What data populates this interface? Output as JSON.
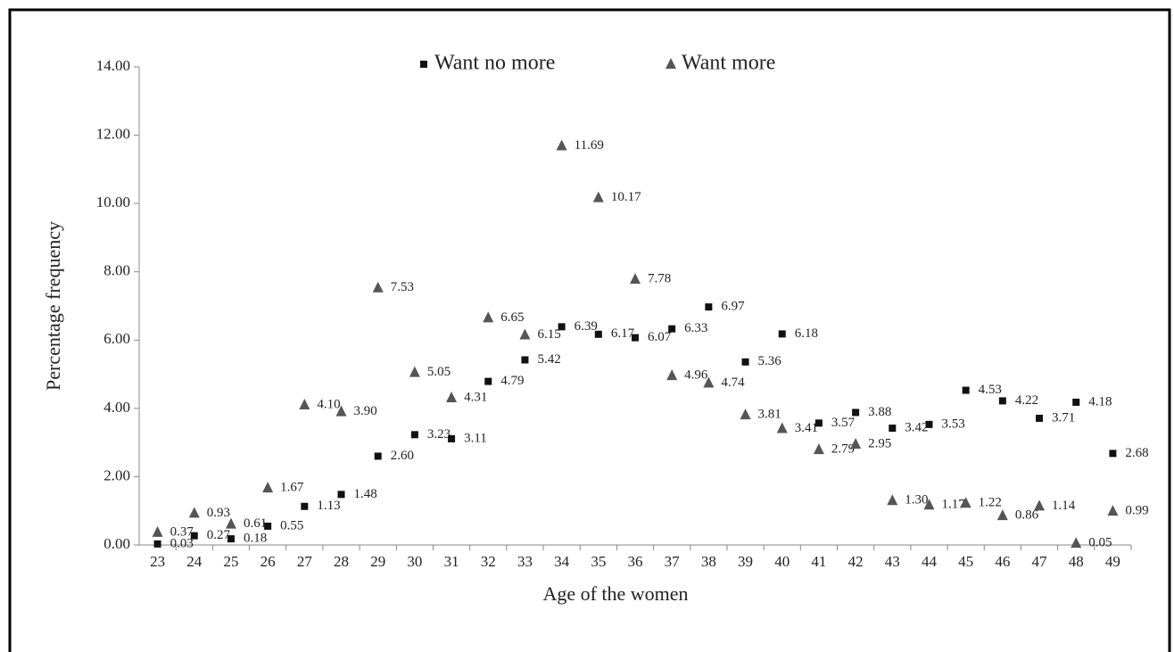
{
  "chart_data": {
    "type": "scatter",
    "x_label": "Age of the women",
    "y_label": "Percentage frequency",
    "categories": [
      "23",
      "24",
      "25",
      "26",
      "27",
      "28",
      "29",
      "30",
      "31",
      "32",
      "33",
      "34",
      "35",
      "36",
      "37",
      "38",
      "39",
      "40",
      "41",
      "42",
      "43",
      "44",
      "45",
      "46",
      "47",
      "48",
      "49"
    ],
    "series": [
      {
        "name": "Want no more",
        "color": "#111111",
        "marker": "square",
        "values": [
          0.03,
          0.27,
          0.18,
          0.55,
          1.13,
          1.48,
          2.6,
          3.23,
          3.11,
          4.79,
          5.42,
          6.39,
          6.17,
          6.07,
          6.33,
          6.97,
          5.36,
          6.18,
          3.57,
          3.88,
          3.42,
          3.53,
          4.53,
          4.22,
          3.71,
          4.18,
          2.68
        ],
        "value_labels": [
          "0.03",
          "0.27",
          "0.18",
          "0.55",
          "1.13",
          "1.48",
          "2.60",
          "3.23",
          "3.11",
          "4.79",
          "5.42",
          "6.39",
          "6.17",
          "6.07",
          "6.33",
          "6.97",
          "5.36",
          "6.18",
          "3.57",
          "3.88",
          "3.42",
          "3.53",
          "4.53",
          "4.22",
          "3.71",
          "4.18",
          "2.68"
        ]
      },
      {
        "name": "Want more",
        "color": "#555555",
        "marker": "triangle",
        "values": [
          0.37,
          0.93,
          0.61,
          1.67,
          4.1,
          3.9,
          7.53,
          5.05,
          4.31,
          6.65,
          6.15,
          11.69,
          10.17,
          7.78,
          4.96,
          4.74,
          3.81,
          3.41,
          2.79,
          2.95,
          1.3,
          1.17,
          1.22,
          0.86,
          1.14,
          0.05,
          0.99
        ],
        "value_labels": [
          "0.37",
          "0.93",
          "0.61",
          "1.67",
          "4.10",
          "3.90",
          "7.53",
          "5.05",
          "4.31",
          "6.65",
          "6.15",
          "11.69",
          "10.17",
          "7.78",
          "4.96",
          "4.74",
          "3.81",
          "3.41",
          "2.79",
          "2.95",
          "1.30",
          "1.17",
          "1.22",
          "0.86",
          "1.14",
          "0.05",
          "0.99"
        ]
      }
    ],
    "ylim": [
      0,
      14
    ],
    "yticks": [
      {
        "value": 0,
        "label": "0.00"
      },
      {
        "value": 2,
        "label": "2.00"
      },
      {
        "value": 4,
        "label": "4.00"
      },
      {
        "value": 6,
        "label": "6.00"
      },
      {
        "value": 8,
        "label": "8.00"
      },
      {
        "value": 10,
        "label": "10.00"
      },
      {
        "value": 12,
        "label": "12.00"
      },
      {
        "value": 14,
        "label": "14.00"
      }
    ],
    "legend": "top"
  }
}
